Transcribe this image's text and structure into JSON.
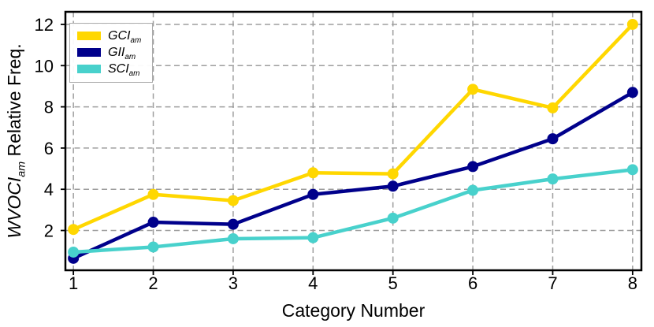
{
  "figure": {
    "xlabel": "Category Number",
    "ylabel_italic": "WVOCI",
    "ylabel_sub": "am",
    "ylabel_rest": " Relative Freq.",
    "background": "#ffffff",
    "text_color": "#000000",
    "grid_color": "#9e9e9e"
  },
  "chart_data": {
    "type": "line",
    "title": "",
    "xlabel": "Category Number",
    "ylabel": "WVOCI_am Relative Freq.",
    "x": [
      1,
      2,
      3,
      4,
      5,
      6,
      7,
      8
    ],
    "xticks": [
      1,
      2,
      3,
      4,
      5,
      6,
      7,
      8
    ],
    "yticks": [
      2,
      4,
      6,
      8,
      10,
      12
    ],
    "xlim": [
      0.9,
      8.11
    ],
    "ylim": [
      0.07,
      12.61
    ],
    "grid": true,
    "grid_style": "dashed",
    "legend_position": "upper-left",
    "marker": "circle",
    "series": [
      {
        "name": "GCI_am",
        "label": "GCI",
        "label_sub": "am",
        "color": "#FFD700",
        "values": [
          2.05,
          3.75,
          3.45,
          4.8,
          4.75,
          8.85,
          7.95,
          12.0
        ]
      },
      {
        "name": "GII_am",
        "label": "GII",
        "label_sub": "am",
        "color": "#00008B",
        "values": [
          0.65,
          2.4,
          2.3,
          3.75,
          4.15,
          5.1,
          6.45,
          8.7
        ]
      },
      {
        "name": "SCI_am",
        "label": "SCI",
        "label_sub": "am",
        "color": "#48D1CC",
        "values": [
          0.95,
          1.2,
          1.6,
          1.65,
          2.6,
          3.95,
          4.5,
          4.95
        ]
      }
    ]
  }
}
